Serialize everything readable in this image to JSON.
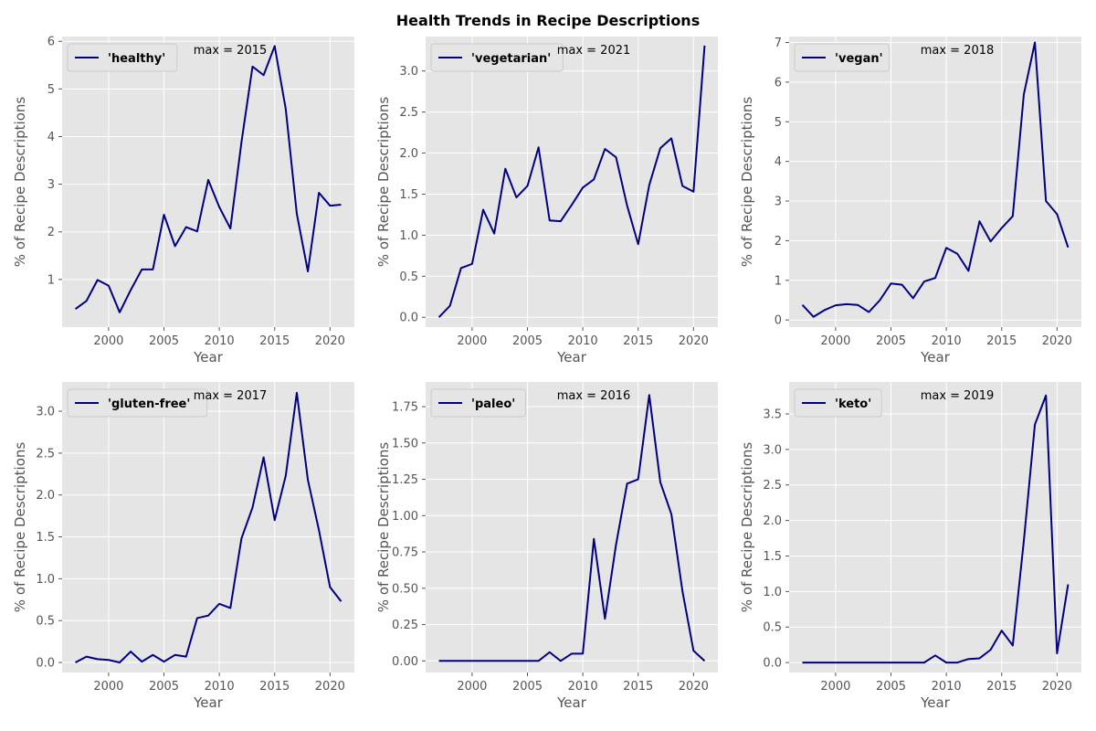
{
  "figure": {
    "title": "Health Trends in Recipe Descriptions"
  },
  "style": {
    "line_color": "#000080",
    "panel_bg": "#e5e5e5",
    "grid_color": "#ffffff",
    "text_color": "#555555"
  },
  "chart_data": [
    {
      "type": "line",
      "series": [
        {
          "name": "'healthy'",
          "x": [
            1997,
            1998,
            1999,
            2000,
            2001,
            2002,
            2003,
            2004,
            2005,
            2006,
            2007,
            2008,
            2009,
            2010,
            2011,
            2012,
            2013,
            2014,
            2015,
            2016,
            2017,
            2018,
            2019,
            2020,
            2021
          ],
          "y": [
            0.38,
            0.55,
            0.99,
            0.87,
            0.31,
            0.78,
            1.21,
            1.21,
            2.36,
            1.7,
            2.1,
            2.01,
            3.09,
            2.52,
            2.07,
            3.88,
            5.47,
            5.29,
            5.9,
            4.58,
            2.38,
            1.17,
            2.82,
            2.55,
            2.57
          ]
        }
      ],
      "annotation": "max = 2015",
      "xlabel": "Year",
      "ylabel": "% of Recipe Descriptions",
      "xlim": [
        1995.8,
        2022.2
      ],
      "ylim": [
        0.0,
        6.1
      ],
      "xticks": [
        2000,
        2005,
        2010,
        2015,
        2020
      ],
      "yticks": [
        1,
        2,
        3,
        4,
        5,
        6
      ],
      "xtick_labels": [
        "2000",
        "2005",
        "2010",
        "2015",
        "2020"
      ],
      "ytick_labels": [
        "1",
        "2",
        "3",
        "4",
        "5",
        "6"
      ],
      "grid": true,
      "legend": "upper left"
    },
    {
      "type": "line",
      "series": [
        {
          "name": "'vegetarian'",
          "x": [
            1997,
            1998,
            1999,
            2000,
            2001,
            2002,
            2003,
            2004,
            2005,
            2006,
            2007,
            2008,
            2009,
            2010,
            2011,
            2012,
            2013,
            2014,
            2015,
            2016,
            2017,
            2018,
            2019,
            2020,
            2021
          ],
          "y": [
            0.0,
            0.14,
            0.6,
            0.65,
            1.31,
            1.02,
            1.81,
            1.46,
            1.6,
            2.07,
            1.18,
            1.17,
            1.37,
            1.58,
            1.68,
            2.05,
            1.95,
            1.36,
            0.89,
            1.61,
            2.06,
            2.18,
            1.6,
            1.53,
            3.31
          ]
        }
      ],
      "annotation": "max = 2021",
      "xlabel": "Year",
      "ylabel": "% of Recipe Descriptions",
      "xlim": [
        1995.8,
        2022.2
      ],
      "ylim": [
        -0.12,
        3.42
      ],
      "xticks": [
        2000,
        2005,
        2010,
        2015,
        2020
      ],
      "yticks": [
        0.0,
        0.5,
        1.0,
        1.5,
        2.0,
        2.5,
        3.0
      ],
      "xtick_labels": [
        "2000",
        "2005",
        "2010",
        "2015",
        "2020"
      ],
      "ytick_labels": [
        "0.0",
        "0.5",
        "1.0",
        "1.5",
        "2.0",
        "2.5",
        "3.0"
      ],
      "grid": true,
      "legend": "upper left"
    },
    {
      "type": "line",
      "series": [
        {
          "name": "'vegan'",
          "x": [
            1997,
            1998,
            1999,
            2000,
            2001,
            2002,
            2003,
            2004,
            2005,
            2006,
            2007,
            2008,
            2009,
            2010,
            2011,
            2012,
            2013,
            2014,
            2015,
            2016,
            2017,
            2018,
            2019,
            2020,
            2021
          ],
          "y": [
            0.38,
            0.08,
            0.25,
            0.37,
            0.4,
            0.38,
            0.2,
            0.5,
            0.92,
            0.89,
            0.55,
            0.97,
            1.06,
            1.82,
            1.67,
            1.24,
            2.49,
            1.98,
            2.32,
            2.62,
            5.69,
            7.0,
            3.0,
            2.67,
            1.83
          ]
        }
      ],
      "annotation": "max = 2018",
      "xlabel": "Year",
      "ylabel": "% of Recipe Descriptions",
      "xlim": [
        1995.8,
        2022.2
      ],
      "ylim": [
        -0.18,
        7.15
      ],
      "xticks": [
        2000,
        2005,
        2010,
        2015,
        2020
      ],
      "yticks": [
        0,
        1,
        2,
        3,
        4,
        5,
        6,
        7
      ],
      "xtick_labels": [
        "2000",
        "2005",
        "2010",
        "2015",
        "2020"
      ],
      "ytick_labels": [
        "0",
        "1",
        "2",
        "3",
        "4",
        "5",
        "6",
        "7"
      ],
      "grid": true,
      "legend": "upper left"
    },
    {
      "type": "line",
      "series": [
        {
          "name": "'gluten-free'",
          "x": [
            1997,
            1998,
            1999,
            2000,
            2001,
            2002,
            2003,
            2004,
            2005,
            2006,
            2007,
            2008,
            2009,
            2010,
            2011,
            2012,
            2013,
            2014,
            2015,
            2016,
            2017,
            2018,
            2019,
            2020,
            2021
          ],
          "y": [
            0.0,
            0.07,
            0.04,
            0.03,
            0.0,
            0.13,
            0.01,
            0.09,
            0.01,
            0.09,
            0.07,
            0.53,
            0.56,
            0.7,
            0.65,
            1.48,
            1.85,
            2.45,
            1.7,
            2.23,
            3.22,
            2.18,
            1.58,
            0.9,
            0.73
          ]
        }
      ],
      "annotation": "max = 2017",
      "xlabel": "Year",
      "ylabel": "% of Recipe Descriptions",
      "xlim": [
        1995.8,
        2022.2
      ],
      "ylim": [
        -0.12,
        3.35
      ],
      "xticks": [
        2000,
        2005,
        2010,
        2015,
        2020
      ],
      "yticks": [
        0.0,
        0.5,
        1.0,
        1.5,
        2.0,
        2.5,
        3.0
      ],
      "xtick_labels": [
        "2000",
        "2005",
        "2010",
        "2015",
        "2020"
      ],
      "ytick_labels": [
        "0.0",
        "0.5",
        "1.0",
        "1.5",
        "2.0",
        "2.5",
        "3.0"
      ],
      "grid": true,
      "legend": "upper left"
    },
    {
      "type": "line",
      "series": [
        {
          "name": "'paleo'",
          "x": [
            1997,
            1998,
            1999,
            2000,
            2001,
            2002,
            2003,
            2004,
            2005,
            2006,
            2007,
            2008,
            2009,
            2010,
            2011,
            2012,
            2013,
            2014,
            2015,
            2016,
            2017,
            2018,
            2019,
            2020,
            2021
          ],
          "y": [
            0.0,
            0.0,
            0.0,
            0.0,
            0.0,
            0.0,
            0.0,
            0.0,
            0.0,
            0.0,
            0.06,
            0.0,
            0.05,
            0.05,
            0.84,
            0.29,
            0.8,
            1.22,
            1.25,
            1.83,
            1.23,
            1.01,
            0.48,
            0.07,
            0.0
          ]
        }
      ],
      "annotation": "max = 2016",
      "xlabel": "Year",
      "ylabel": "% of Recipe Descriptions",
      "xlim": [
        1995.8,
        2022.2
      ],
      "ylim": [
        -0.08,
        1.92
      ],
      "xticks": [
        2000,
        2005,
        2010,
        2015,
        2020
      ],
      "yticks": [
        0.0,
        0.25,
        0.5,
        0.75,
        1.0,
        1.25,
        1.5,
        1.75
      ],
      "xtick_labels": [
        "2000",
        "2005",
        "2010",
        "2015",
        "2020"
      ],
      "ytick_labels": [
        "0.00",
        "0.25",
        "0.50",
        "0.75",
        "1.00",
        "1.25",
        "1.50",
        "1.75"
      ],
      "grid": true,
      "legend": "upper left"
    },
    {
      "type": "line",
      "series": [
        {
          "name": "'keto'",
          "x": [
            1997,
            1998,
            1999,
            2000,
            2001,
            2002,
            2003,
            2004,
            2005,
            2006,
            2007,
            2008,
            2009,
            2010,
            2011,
            2012,
            2013,
            2014,
            2015,
            2016,
            2017,
            2018,
            2019,
            2020,
            2021
          ],
          "y": [
            0.0,
            0.0,
            0.0,
            0.0,
            0.0,
            0.0,
            0.0,
            0.0,
            0.0,
            0.0,
            0.0,
            0.0,
            0.1,
            0.0,
            0.0,
            0.05,
            0.06,
            0.18,
            0.45,
            0.24,
            1.71,
            3.35,
            3.76,
            0.13,
            1.1
          ]
        }
      ],
      "annotation": "max = 2019",
      "xlabel": "Year",
      "ylabel": "% of Recipe Descriptions",
      "xlim": [
        1995.8,
        2022.2
      ],
      "ylim": [
        -0.14,
        3.95
      ],
      "xticks": [
        2000,
        2005,
        2010,
        2015,
        2020
      ],
      "yticks": [
        0.0,
        0.5,
        1.0,
        1.5,
        2.0,
        2.5,
        3.0,
        3.5
      ],
      "xtick_labels": [
        "2000",
        "2005",
        "2010",
        "2015",
        "2020"
      ],
      "ytick_labels": [
        "0.0",
        "0.5",
        "1.0",
        "1.5",
        "2.0",
        "2.5",
        "3.0",
        "3.5"
      ],
      "grid": true,
      "legend": "upper left"
    }
  ]
}
